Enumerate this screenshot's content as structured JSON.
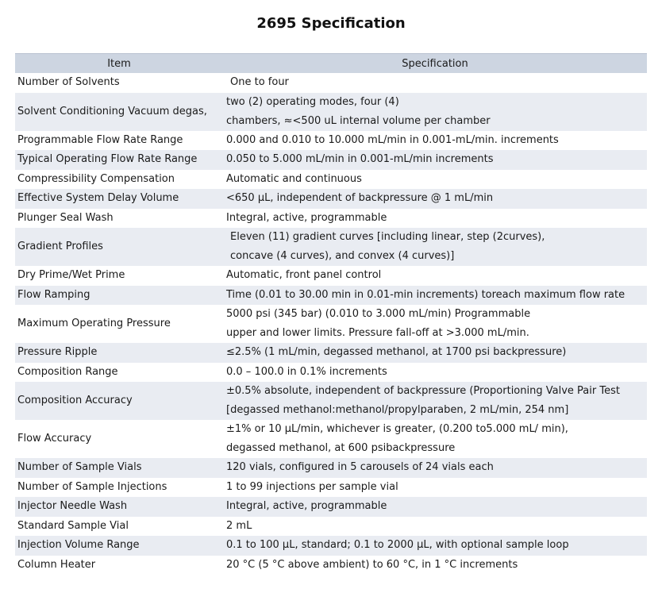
{
  "title": "2695 Specification",
  "table": {
    "headers": [
      "Item",
      "Specification"
    ],
    "rows": [
      {
        "item": "Number of Solvents",
        "spec": [
          "One to four"
        ],
        "indent": true
      },
      {
        "item": "Solvent Conditioning Vacuum degas,",
        "spec": [
          "two (2) operating modes, four (4)",
          "chambers, ≈<500 uL internal volume per chamber"
        ],
        "indent": false
      },
      {
        "item": "Programmable Flow Rate Range",
        "spec": [
          "0.000 and 0.010 to 10.000 mL/min in 0.001-mL/min. increments"
        ],
        "indent": false
      },
      {
        "item": "Typical Operating Flow Rate Range",
        "spec": [
          "0.050 to 5.000 mL/min in 0.001-mL/min increments"
        ],
        "indent": false
      },
      {
        "item": "Compressibility Compensation",
        "spec": [
          "Automatic and continuous"
        ],
        "indent": false
      },
      {
        "item": "Effective System Delay Volume",
        "spec": [
          "<650 μL, independent of backpressure @ 1 mL/min"
        ],
        "indent": false
      },
      {
        "item": "Plunger Seal Wash",
        "spec": [
          "Integral, active, programmable"
        ],
        "indent": false
      },
      {
        "item": "Gradient Profiles",
        "spec": [
          "Eleven (11) gradient curves [including linear, step (2curves),",
          "concave (4 curves), and convex (4 curves)]"
        ],
        "indent": true
      },
      {
        "item": "Dry Prime/Wet Prime",
        "spec": [
          "Automatic, front panel control"
        ],
        "indent": false
      },
      {
        "item": "Flow Ramping",
        "spec": [
          "Time (0.01 to 30.00 min in 0.01-min increments) toreach maximum flow rate"
        ],
        "indent": false
      },
      {
        "item": "Maximum Operating Pressure",
        "spec": [
          "5000 psi (345 bar) (0.010 to 3.000 mL/min) Programmable",
          "upper and lower limits. Pressure fall-off at >3.000 mL/min."
        ],
        "indent": false
      },
      {
        "item": "Pressure Ripple",
        "spec": [
          "≤2.5% (1 mL/min, degassed methanol, at 1700 psi backpressure)"
        ],
        "indent": false
      },
      {
        "item": "Composition Range",
        "spec": [
          "0.0 – 100.0 in 0.1% increments"
        ],
        "indent": false
      },
      {
        "item": "Composition Accuracy",
        "spec": [
          "±0.5% absolute, independent of backpressure (Proportioning Valve Pair Test",
          "[degassed methanol:methanol/propylparaben, 2 mL/min, 254 nm]"
        ],
        "indent": false
      },
      {
        "item": "Flow Accuracy",
        "spec": [
          "±1% or 10 μL/min, whichever is greater, (0.200 to5.000 mL/ min),",
          " degassed methanol, at 600 psibackpressure"
        ],
        "indent": false
      },
      {
        "item": "Number of Sample Vials",
        "spec": [
          "120 vials, configured in 5 carousels of 24 vials each"
        ],
        "indent": false
      },
      {
        "item": "Number of Sample Injections",
        "spec": [
          "1 to 99 injections per sample vial"
        ],
        "indent": false
      },
      {
        "item": "Injector Needle Wash",
        "spec": [
          "Integral, active, programmable"
        ],
        "indent": false
      },
      {
        "item": "Standard Sample Vial",
        "spec": [
          "2 mL"
        ],
        "indent": false
      },
      {
        "item": "Injection Volume Range",
        "spec": [
          "0.1 to 100 μL, standard; 0.1 to 2000 μL, with optional sample loop"
        ],
        "indent": false
      },
      {
        "item": "Column Heater",
        "spec": [
          "20 °C (5 °C above ambient) to 60 °C, in 1 °C increments"
        ],
        "indent": false
      }
    ]
  }
}
